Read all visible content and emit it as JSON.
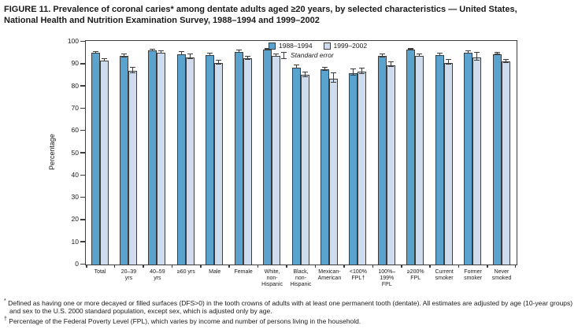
{
  "figure": {
    "title": "FIGURE 11. Prevalence of coronal caries* among dentate adults aged ≥20 years, by selected characteristics — United States,\nNational Health and Nutrition Examination Survey, 1988–1994 and 1999–2002"
  },
  "legend": {
    "standard_error_label": "Standard error"
  },
  "colors": {
    "bar_1988_1994": "#5BA3CF",
    "bar_1999_2002": "#CEDCEE",
    "axis": "#3D3D3D",
    "text": "#1A1A1A"
  },
  "chart_data": {
    "type": "bar",
    "title": "Prevalence of coronal caries among dentate adults aged ≥20 years",
    "xlabel": "",
    "ylabel": "Percentage",
    "ylim": [
      0,
      100
    ],
    "ytick_step": 10,
    "grid": "off",
    "legend_position": "top-center",
    "error_bars": "standard error, ± shown as capped I-beams",
    "categories": [
      "Total",
      "20–39\nyrs",
      "40–59\nyrs",
      "≥60 yrs",
      "Male",
      "Female",
      "White,\nnon-\nHispanic",
      "Black,\nnon-\nHispanic",
      "Mexican-\nAmerican",
      "<100%\nFPL†",
      "100%–\n199%\nFPL",
      "≥200%\nFPL",
      "Current\nsmoker",
      "Former\nsmoker",
      "Never\nsmoked"
    ],
    "series": [
      {
        "name": "1988–1994",
        "color": "#5BA3CF",
        "values": [
          95,
          93.5,
          96,
          94.5,
          94,
          95.5,
          96.5,
          88.5,
          87.5,
          86,
          93.5,
          96.5,
          94,
          95,
          94.5
        ],
        "standard_errors": [
          0.5,
          0.8,
          0.6,
          0.9,
          0.7,
          0.7,
          0.4,
          0.9,
          1.0,
          1.5,
          0.9,
          0.4,
          0.8,
          0.8,
          0.5
        ]
      },
      {
        "name": "1999–2002",
        "color": "#CEDCEE",
        "values": [
          91.5,
          87,
          95,
          93,
          90.5,
          92.5,
          93.5,
          85,
          83.5,
          86.5,
          89.5,
          93.5,
          90.5,
          93,
          91
        ],
        "standard_errors": [
          0.8,
          1.4,
          0.8,
          1.2,
          1.1,
          0.9,
          0.7,
          1.3,
          2.3,
          1.5,
          1.2,
          0.7,
          1.2,
          1.9,
          1.0
        ]
      }
    ]
  },
  "footnotes": [
    {
      "marker": "*",
      "text": "Defined as having one or more decayed or filled surfaces (DFS>0) in the tooth crowns of adults with at least one permanent tooth (dentate). All estimates are adjusted by age (10-year groups) and sex to the U.S. 2000 standard population, except sex, which is adjusted only by age."
    },
    {
      "marker": "†",
      "text": "Percentage of the Federal Poverty Level (FPL), which varies by income and number of persons living in the household."
    }
  ]
}
